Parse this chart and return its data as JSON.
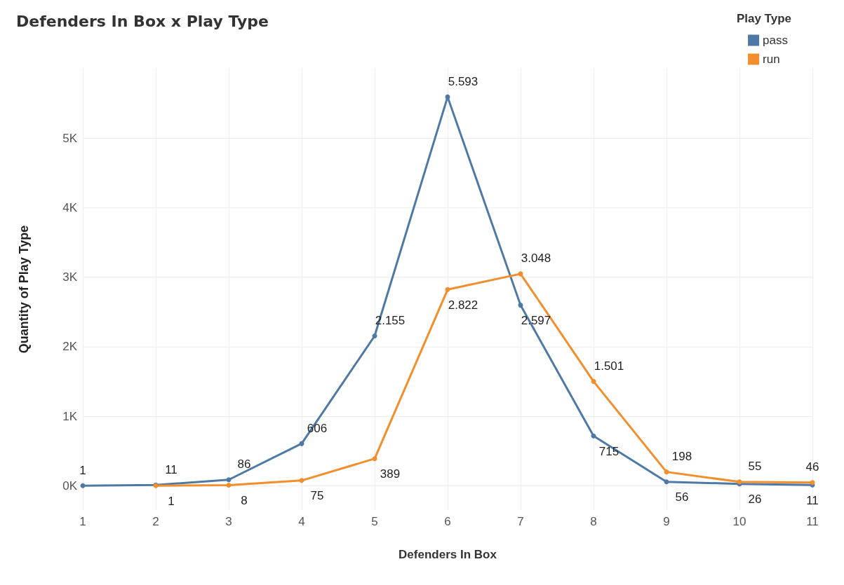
{
  "chart_data": {
    "type": "line",
    "title": "Defenders In Box x Play Type",
    "xlabel": "Defenders In Box",
    "ylabel": "Quantity of Play Type",
    "legend_title": "Play Type",
    "legend": "top right",
    "grid": true,
    "marker": "circle",
    "line_style": "solid",
    "x": [
      1,
      2,
      3,
      4,
      5,
      6,
      7,
      8,
      9,
      10,
      11
    ],
    "xlim": [
      1,
      11
    ],
    "xticks": [
      1,
      2,
      3,
      4,
      5,
      6,
      7,
      8,
      9,
      10,
      11
    ],
    "ylim": [
      -350,
      6000
    ],
    "yticks": [
      {
        "value": 0,
        "label": "0K"
      },
      {
        "value": 1000,
        "label": "1K"
      },
      {
        "value": 2000,
        "label": "2K"
      },
      {
        "value": 3000,
        "label": "3K"
      },
      {
        "value": 4000,
        "label": "4K"
      },
      {
        "value": 5000,
        "label": "5K"
      }
    ],
    "series": [
      {
        "name": "pass",
        "color": "#4e79a7",
        "values": [
          1,
          11,
          86,
          606,
          2155,
          5593,
          2597,
          715,
          56,
          26,
          11
        ],
        "value_labels": [
          "1",
          "11",
          "86",
          "606",
          "2.155",
          "5.593",
          "2.597",
          "715",
          "56",
          "26",
          "11"
        ]
      },
      {
        "name": "run",
        "color": "#f28e2b",
        "values": [
          null,
          1,
          8,
          75,
          389,
          2822,
          3048,
          1501,
          198,
          55,
          46
        ],
        "value_labels": [
          null,
          "1",
          "8",
          "75",
          "389",
          "2.822",
          "3.048",
          "1.501",
          "198",
          "55",
          "46"
        ]
      }
    ]
  }
}
